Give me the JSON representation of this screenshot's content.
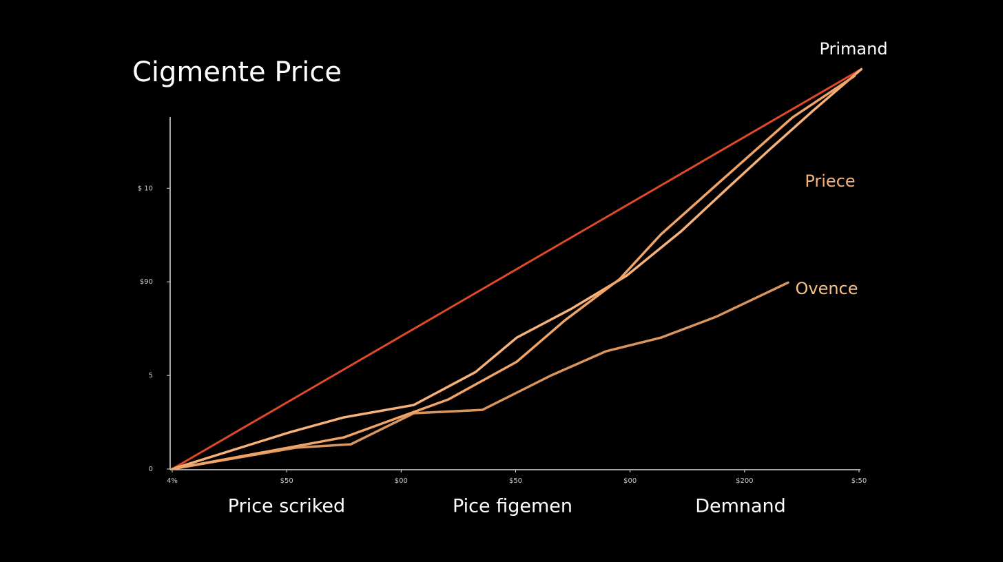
{
  "chart_data": {
    "type": "line",
    "title": "Cigmente Price",
    "annotations": [
      "Price scriked",
      "Pice figemen",
      "Demnand"
    ],
    "xlim": [
      0,
      6
    ],
    "ylim": [
      0,
      18.8
    ],
    "xticks": [
      {
        "value": 0,
        "label": "4%"
      },
      {
        "value": 1,
        "label": "$50"
      },
      {
        "value": 2,
        "label": "$00"
      },
      {
        "value": 3,
        "label": "$50"
      },
      {
        "value": 4,
        "label": "$00"
      },
      {
        "value": 5,
        "label": "$200"
      },
      {
        "value": 6,
        "label": "$:50"
      }
    ],
    "yticks": [
      {
        "value": 0,
        "label": "0"
      },
      5,
      {
        "value": 10,
        "label": "$90"
      },
      {
        "value": 15,
        "label": "$ 10"
      }
    ],
    "series": [
      {
        "name": "Primand",
        "color": "#e0482a",
        "x": [
          0,
          6.02
        ],
        "values": [
          0,
          21.36
        ]
      },
      {
        "name": "Priece",
        "color": "#f6b27a",
        "x": [
          0,
          1.02,
          1.5,
          2.11,
          2.65,
          3.01,
          3.49,
          3.97,
          4.45,
          4.87,
          5.23,
          5.6,
          6.02
        ],
        "values": [
          0,
          1.95,
          2.76,
          3.42,
          5.18,
          7.02,
          8.57,
          10.33,
          12.72,
          15.11,
          17.13,
          19.15,
          21.36
        ]
      },
      {
        "name": "Ovence",
        "color": "#d9955e",
        "x": [
          0,
          1.08,
          1.56,
          2.11,
          2.71,
          3.31,
          3.79,
          4.27,
          4.75,
          5.38
        ],
        "values": [
          0,
          1.14,
          1.32,
          2.98,
          3.16,
          5.0,
          6.29,
          7.02,
          8.13,
          9.96
        ]
      },
      {
        "color": "#f0a468",
        "x": [
          0,
          1.5,
          2.41,
          3.01,
          3.43,
          3.91,
          4.27,
          4.81,
          5.42,
          5.96
        ],
        "values": [
          0,
          1.69,
          3.71,
          5.73,
          7.94,
          10.15,
          12.54,
          15.48,
          18.79,
          20.99
        ]
      }
    ]
  }
}
